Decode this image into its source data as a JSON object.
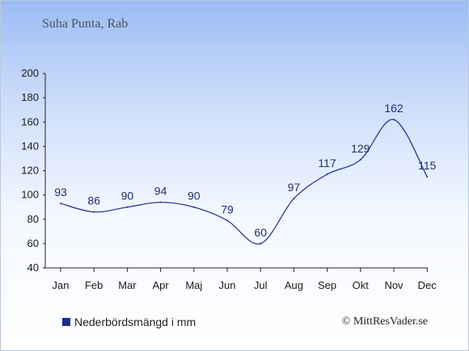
{
  "chart_data": {
    "type": "line",
    "title": "Suha Punta, Rab",
    "categories": [
      "Jan",
      "Feb",
      "Mar",
      "Apr",
      "Maj",
      "Jun",
      "Jul",
      "Aug",
      "Sep",
      "Okt",
      "Nov",
      "Dec"
    ],
    "series": [
      {
        "name": "Nederbördsmängd i mm",
        "values": [
          93,
          86,
          90,
          94,
          90,
          79,
          60,
          97,
          117,
          129,
          162,
          115
        ],
        "color": "#1a2d8f"
      }
    ],
    "ylim": [
      40,
      200
    ],
    "yticks": [
      40,
      60,
      80,
      100,
      120,
      140,
      160,
      180,
      200
    ],
    "grid": false,
    "legend_position": "bottom-left"
  },
  "footer": {
    "credit": "© MittResVader.se"
  }
}
